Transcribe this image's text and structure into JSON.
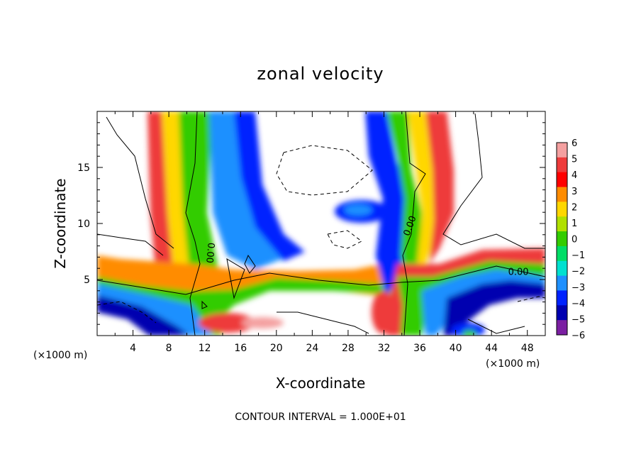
{
  "chart_data": {
    "type": "heatmap",
    "title": "zonal velocity",
    "xlabel": "X-coordinate",
    "ylabel": "Z-coordinate",
    "x_unit_left": "(×1000 m)",
    "x_unit_right": "(×1000 m)",
    "xlim": [
      0,
      50
    ],
    "ylim": [
      0,
      20
    ],
    "x_ticks": [
      4,
      8,
      12,
      16,
      20,
      24,
      28,
      32,
      36,
      40,
      44,
      48
    ],
    "y_ticks": [
      5,
      10,
      15
    ],
    "colorbar": {
      "levels": [
        6,
        5,
        4,
        3,
        2,
        1,
        0,
        -1,
        -2,
        -3,
        -4,
        -5,
        -6
      ],
      "colors": [
        "#f4a0a0",
        "#ee3b3b",
        "#ff0000",
        "#ff8c00",
        "#ffd700",
        "#b0e000",
        "#33cc00",
        "#00dd66",
        "#00e0d0",
        "#1e90ff",
        "#0022ff",
        "#0000b0",
        "#7b1fa2"
      ]
    },
    "contour_labels": [
      {
        "text": "0.00",
        "x": 12.3,
        "z": 7.4,
        "rotate": 95
      },
      {
        "text": "0.00",
        "x": 35.2,
        "z": 9.7,
        "rotate": -70
      },
      {
        "text": "0.00",
        "x": 47.0,
        "z": 5.4,
        "rotate": 0
      }
    ],
    "contour_interval_note": "CONTOUR INTERVAL = 1.000E+01",
    "grid": false
  }
}
